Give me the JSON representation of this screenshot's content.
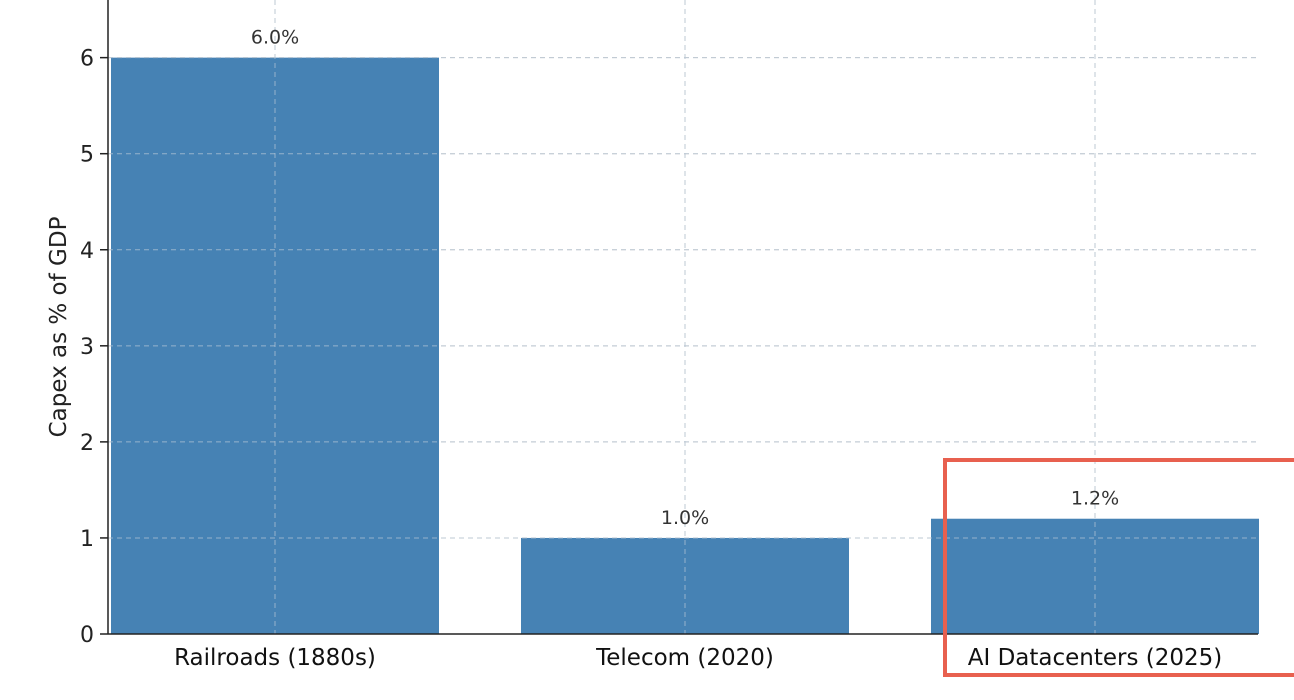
{
  "chart_data": {
    "type": "bar",
    "categories": [
      "Railroads (1880s)",
      "Telecom (2020)",
      "AI Datacenters (2025)"
    ],
    "values": [
      6.0,
      1.0,
      1.2
    ],
    "data_labels": [
      "6.0%",
      "1.0%",
      "1.2%"
    ],
    "title": "",
    "xlabel": "",
    "ylabel": "Capex as % of GDP",
    "ylim": [
      0,
      6.6
    ],
    "yticks": [
      0,
      1,
      2,
      3,
      4,
      5,
      6
    ],
    "ytick_labels": [
      "0",
      "1",
      "2",
      "3",
      "4",
      "5",
      "6"
    ],
    "grid": true,
    "bar_color": "#4682b4",
    "highlight": {
      "category": "AI Datacenters (2025)",
      "color": "#e8604f"
    }
  }
}
